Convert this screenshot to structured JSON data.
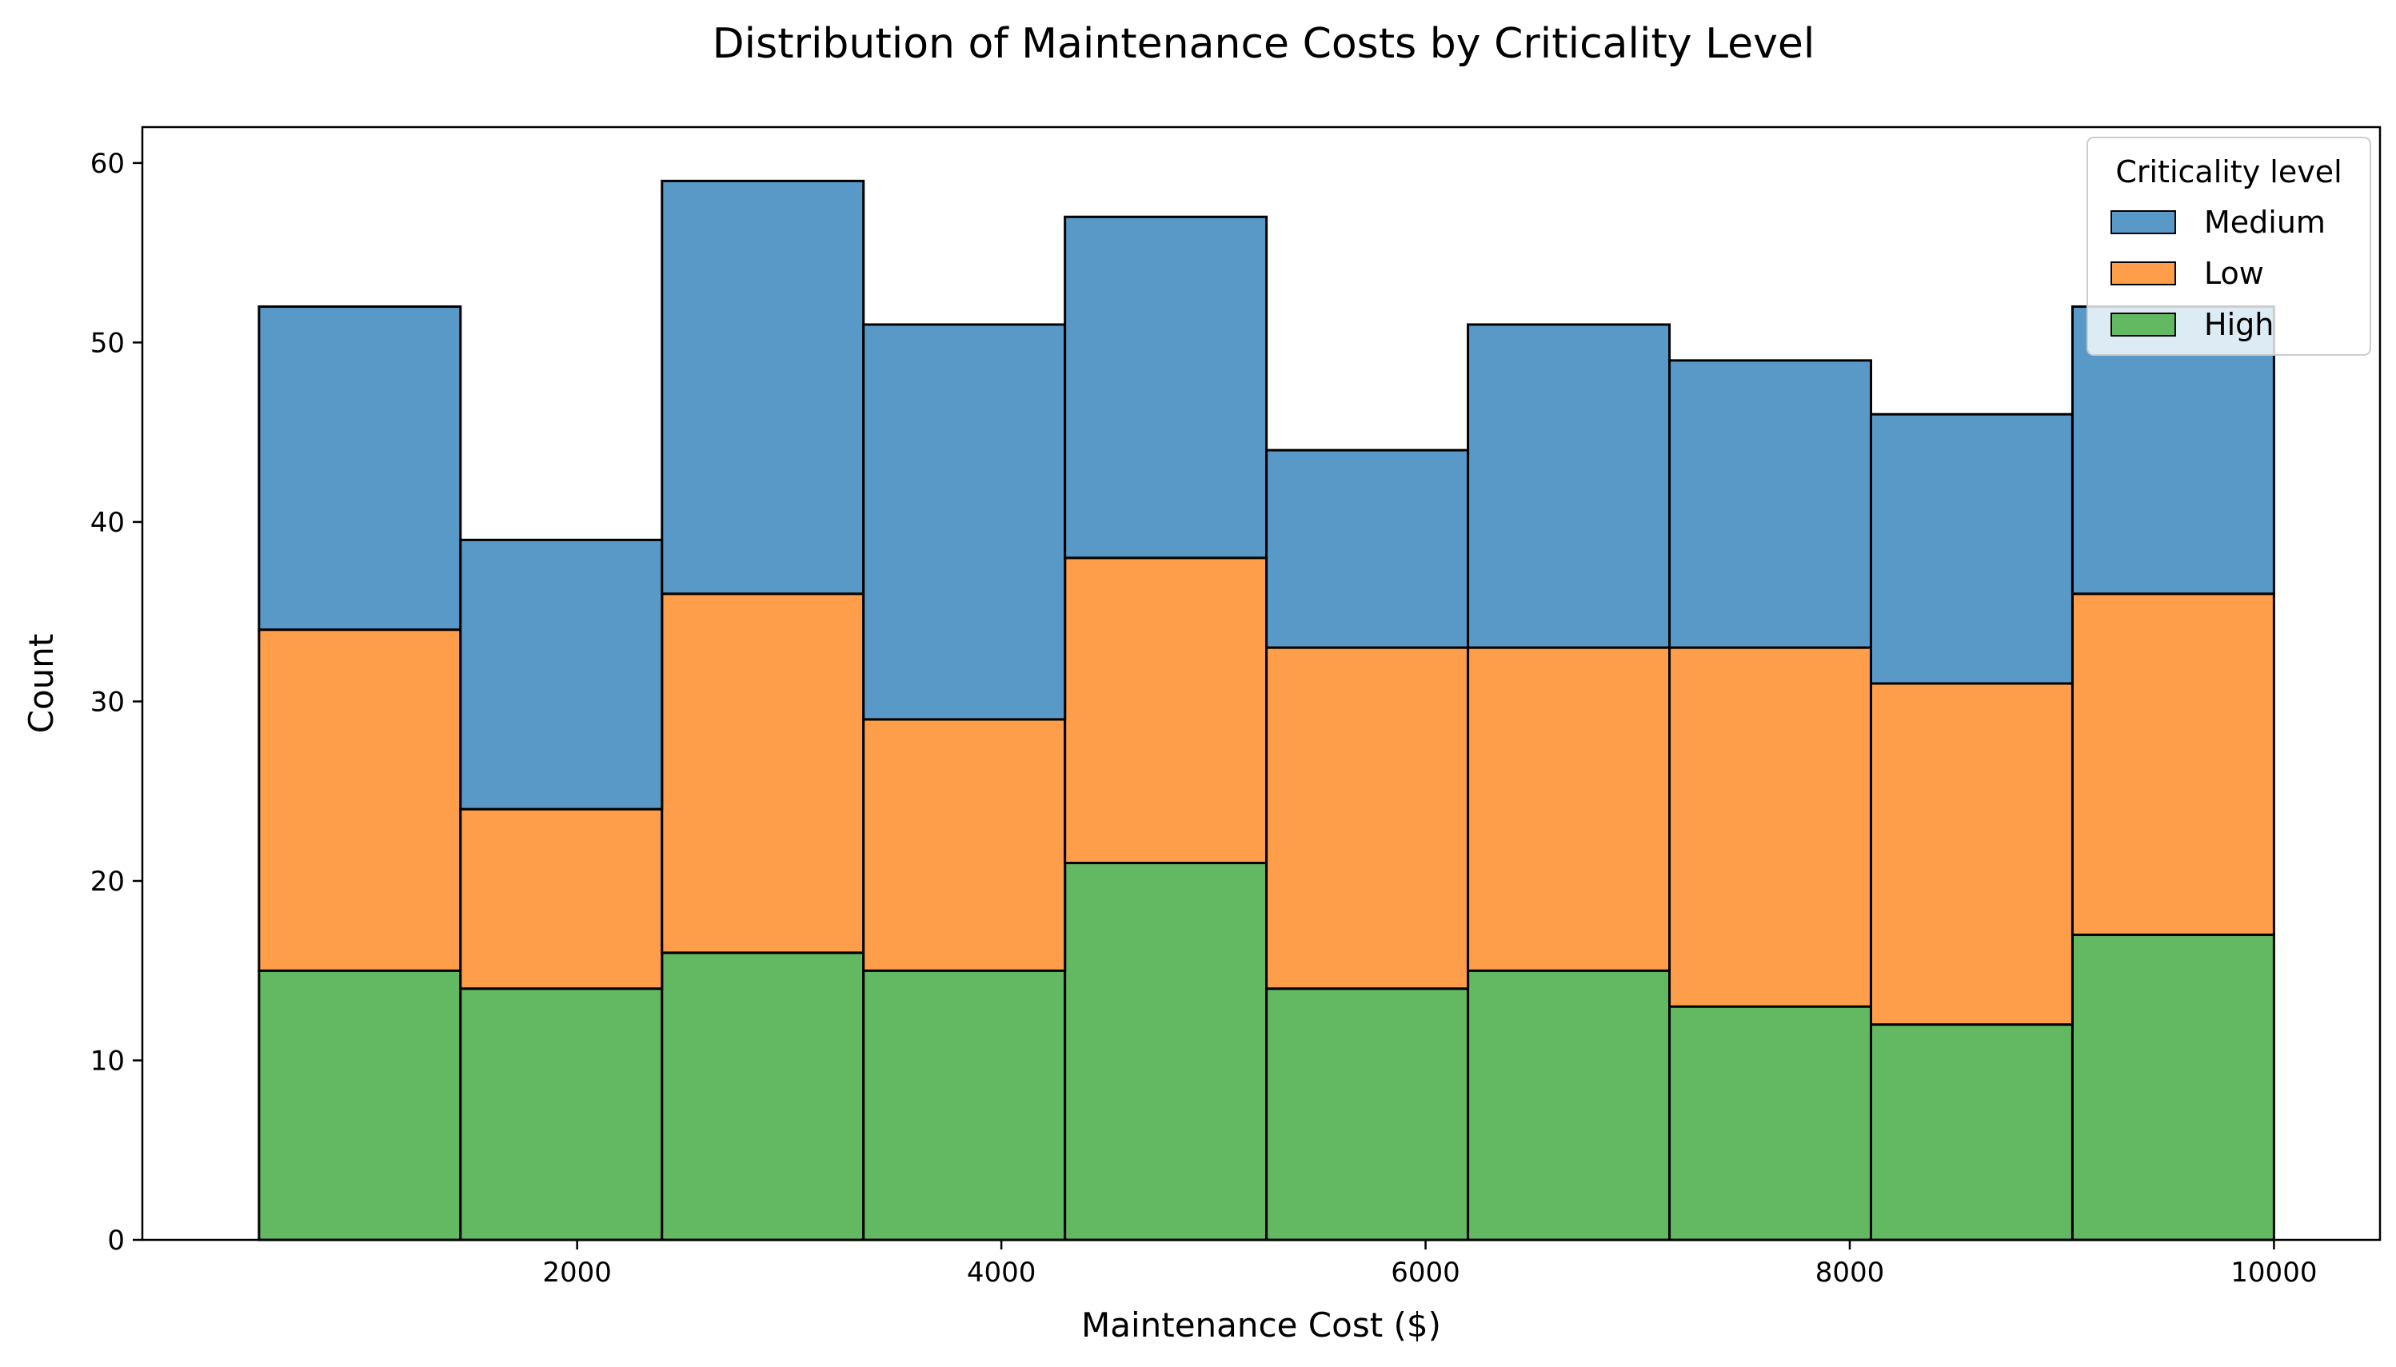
{
  "chart_data": {
    "type": "bar",
    "stacked": true,
    "histogram": true,
    "title": "Distribution of Maintenance Costs by Criticality Level",
    "xlabel": "Maintenance Cost ($)",
    "ylabel": "Count",
    "xlim": [
      -50,
      10500
    ],
    "ylim": [
      0,
      62
    ],
    "bin_edges": [
      500,
      1450,
      2400,
      3350,
      4300,
      5250,
      6200,
      7150,
      8100,
      9050,
      10000
    ],
    "x_ticks": [
      2000,
      4000,
      6000,
      8000,
      10000
    ],
    "x_tick_labels": [
      "2000",
      "4000",
      "6000",
      "8000",
      "10000"
    ],
    "y_ticks": [
      0,
      10,
      20,
      30,
      40,
      50,
      60
    ],
    "y_tick_labels": [
      "0",
      "10",
      "20",
      "30",
      "40",
      "50",
      "60"
    ],
    "series": [
      {
        "name": "High",
        "color": "#63b862",
        "values": [
          15,
          14,
          16,
          15,
          21,
          14,
          15,
          13,
          12,
          17
        ]
      },
      {
        "name": "Low",
        "color": "#ff9e4a",
        "values": [
          19,
          10,
          20,
          14,
          17,
          19,
          18,
          20,
          19,
          19
        ]
      },
      {
        "name": "Medium",
        "color": "#5899c7",
        "values": [
          18,
          15,
          23,
          22,
          19,
          11,
          18,
          16,
          15,
          16
        ]
      }
    ],
    "grid": false,
    "legend": {
      "title": "Criticality level",
      "placement": "top-right",
      "entries": [
        "Medium",
        "Low",
        "High"
      ]
    }
  }
}
